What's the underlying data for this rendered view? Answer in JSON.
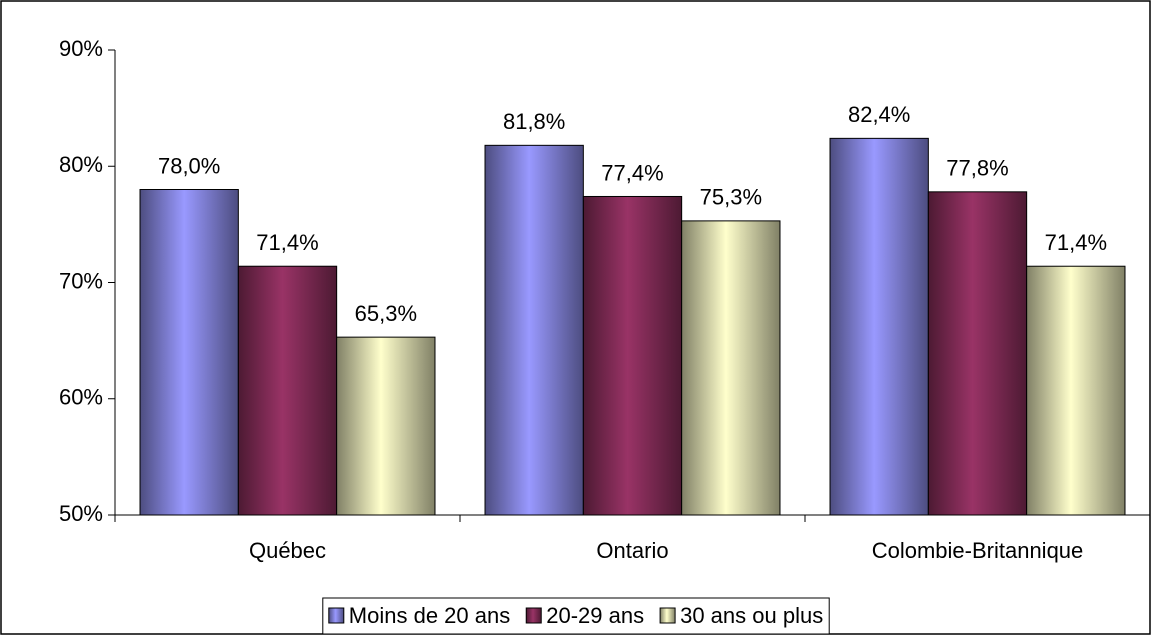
{
  "chart_data": {
    "type": "bar",
    "categories": [
      "Québec",
      "Ontario",
      "Colombie-Britannique"
    ],
    "series": [
      {
        "name": "Moins de 20 ans",
        "color": "#9999ff",
        "values": [
          78.0,
          81.8,
          82.4
        ],
        "value_labels": [
          "78,0%",
          "81,8%",
          "82,4%"
        ]
      },
      {
        "name": "20-29 ans",
        "color": "#993366",
        "values": [
          71.4,
          77.4,
          77.8
        ],
        "value_labels": [
          "71,4%",
          "77,4%",
          "77,8%"
        ]
      },
      {
        "name": "30 ans ou plus",
        "color": "#ffffcc",
        "values": [
          65.3,
          75.3,
          71.4
        ],
        "value_labels": [
          "65,3%",
          "75,3%",
          "71,4%"
        ]
      }
    ],
    "ylim": [
      50,
      90
    ],
    "yticks": [
      {
        "value": 50,
        "label": "50%"
      },
      {
        "value": 60,
        "label": "60%"
      },
      {
        "value": 70,
        "label": "70%"
      },
      {
        "value": 80,
        "label": "80%"
      },
      {
        "value": 90,
        "label": "90%"
      }
    ],
    "grid": false,
    "legend": "bottom"
  }
}
